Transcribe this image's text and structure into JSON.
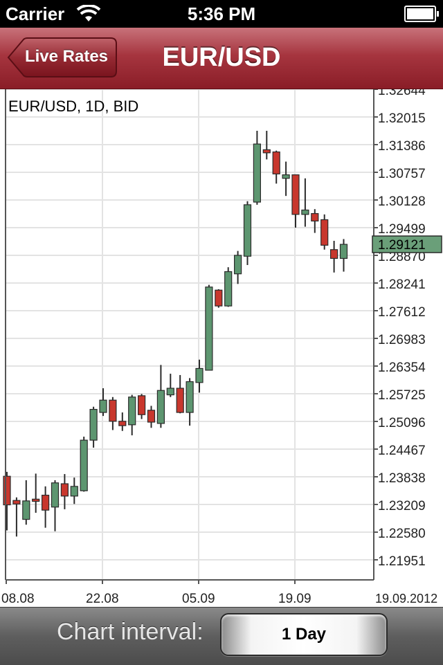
{
  "status_bar": {
    "carrier": "Carrier",
    "time": "5:36 PM",
    "wifi_icon": "wifi-icon",
    "battery_icon": "battery-icon"
  },
  "nav": {
    "back_label": "Live Rates",
    "title": "EUR/USD",
    "bar_color": "#a6353f"
  },
  "chart_header": "EUR/USD, 1D, BID",
  "chart_data": {
    "type": "candlestick",
    "up_color": "#5d9670",
    "down_color": "#c8372d",
    "last_price_label": "1.29121",
    "y_ticks": [
      "1.32644",
      "1.32015",
      "1.31386",
      "1.30757",
      "1.30128",
      "1.29499",
      "1.28870",
      "1.28241",
      "1.27612",
      "1.26983",
      "1.26354",
      "1.25725",
      "1.25096",
      "1.24467",
      "1.23838",
      "1.23209",
      "1.22580",
      "1.21951"
    ],
    "ylim": [
      1.2132,
      1.32644
    ],
    "x_ticks": [
      "08.08",
      "22.08",
      "05.09",
      "19.09",
      "19.09.2012"
    ],
    "grid": true,
    "candles": [
      {
        "date": "08.08",
        "open": 1.2385,
        "high": 1.2395,
        "low": 1.2262,
        "close": 1.232
      },
      {
        "date": "09.08",
        "open": 1.233,
        "high": 1.2337,
        "low": 1.2248,
        "close": 1.2322
      },
      {
        "date": "10.08",
        "open": 1.2287,
        "high": 1.2376,
        "low": 1.2275,
        "close": 1.2329
      },
      {
        "date": "13.08",
        "open": 1.2333,
        "high": 1.2391,
        "low": 1.2302,
        "close": 1.2328
      },
      {
        "date": "14.08",
        "open": 1.2342,
        "high": 1.2362,
        "low": 1.2268,
        "close": 1.2308
      },
      {
        "date": "15.08",
        "open": 1.2315,
        "high": 1.2376,
        "low": 1.226,
        "close": 1.237
      },
      {
        "date": "16.08",
        "open": 1.2368,
        "high": 1.239,
        "low": 1.231,
        "close": 1.234
      },
      {
        "date": "17.08",
        "open": 1.234,
        "high": 1.2382,
        "low": 1.2322,
        "close": 1.2362
      },
      {
        "date": "20.08",
        "open": 1.2352,
        "high": 1.2475,
        "low": 1.235,
        "close": 1.2467
      },
      {
        "date": "21.08",
        "open": 1.2467,
        "high": 1.2543,
        "low": 1.245,
        "close": 1.2537
      },
      {
        "date": "22.08",
        "open": 1.253,
        "high": 1.2585,
        "low": 1.2522,
        "close": 1.2558
      },
      {
        "date": "23.08",
        "open": 1.2558,
        "high": 1.2565,
        "low": 1.249,
        "close": 1.251
      },
      {
        "date": "24.08",
        "open": 1.251,
        "high": 1.253,
        "low": 1.2488,
        "close": 1.25
      },
      {
        "date": "27.08",
        "open": 1.2502,
        "high": 1.257,
        "low": 1.2478,
        "close": 1.2565
      },
      {
        "date": "28.08",
        "open": 1.2568,
        "high": 1.2572,
        "low": 1.2515,
        "close": 1.2525
      },
      {
        "date": "29.08",
        "open": 1.2535,
        "high": 1.2545,
        "low": 1.2495,
        "close": 1.2508
      },
      {
        "date": "30.08",
        "open": 1.2505,
        "high": 1.2638,
        "low": 1.2495,
        "close": 1.258
      },
      {
        "date": "31.08",
        "open": 1.257,
        "high": 1.2618,
        "low": 1.2565,
        "close": 1.2585
      },
      {
        "date": "03.09",
        "open": 1.2585,
        "high": 1.2615,
        "low": 1.2528,
        "close": 1.253
      },
      {
        "date": "04.09",
        "open": 1.253,
        "high": 1.2608,
        "low": 1.25,
        "close": 1.26
      },
      {
        "date": "05.09",
        "open": 1.2598,
        "high": 1.265,
        "low": 1.2575,
        "close": 1.263
      },
      {
        "date": "06.09",
        "open": 1.2626,
        "high": 1.282,
        "low": 1.2626,
        "close": 1.2815
      },
      {
        "date": "07.09",
        "open": 1.2808,
        "high": 1.281,
        "low": 1.2768,
        "close": 1.2772
      },
      {
        "date": "10.09",
        "open": 1.2772,
        "high": 1.286,
        "low": 1.277,
        "close": 1.285
      },
      {
        "date": "11.09",
        "open": 1.2845,
        "high": 1.2897,
        "low": 1.2822,
        "close": 1.2887
      },
      {
        "date": "12.09",
        "open": 1.2885,
        "high": 1.301,
        "low": 1.2865,
        "close": 1.3002
      },
      {
        "date": "13.09",
        "open": 1.3008,
        "high": 1.317,
        "low": 1.3002,
        "close": 1.314
      },
      {
        "date": "14.09",
        "open": 1.3127,
        "high": 1.317,
        "low": 1.3105,
        "close": 1.312
      },
      {
        "date": "17.09",
        "open": 1.3122,
        "high": 1.3125,
        "low": 1.305,
        "close": 1.3072
      },
      {
        "date": "18.09",
        "open": 1.3062,
        "high": 1.31,
        "low": 1.3022,
        "close": 1.307
      },
      {
        "date": "19.09",
        "open": 1.307,
        "high": 1.307,
        "low": 1.295,
        "close": 1.298
      },
      {
        "date": "20.09",
        "open": 1.298,
        "high": 1.3062,
        "low": 1.2952,
        "close": 1.299
      },
      {
        "date": "21.09",
        "open": 1.2982,
        "high": 1.2992,
        "low": 1.2938,
        "close": 1.2965
      },
      {
        "date": "24.09",
        "open": 1.2968,
        "high": 1.298,
        "low": 1.29,
        "close": 1.291
      },
      {
        "date": "25.09",
        "open": 1.29,
        "high": 1.292,
        "low": 1.2848,
        "close": 1.288
      },
      {
        "date": "26.09",
        "open": 1.288,
        "high": 1.2924,
        "low": 1.285,
        "close": 1.2912
      }
    ]
  },
  "toolbar": {
    "interval_label": "Chart interval:",
    "interval_value": "1 Day"
  }
}
